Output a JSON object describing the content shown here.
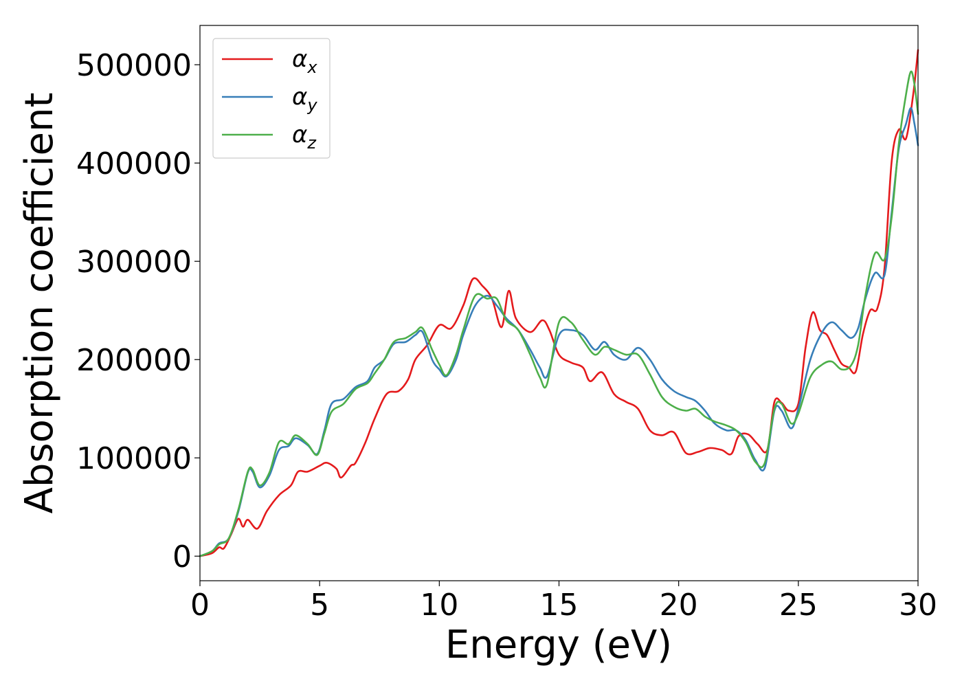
{
  "chart_data": {
    "type": "line",
    "title": "",
    "xlabel": "Energy (eV)",
    "ylabel": "Absorption coefficient",
    "xlim": [
      0,
      30
    ],
    "ylim": [
      -25000,
      540000
    ],
    "xticks": [
      0,
      5,
      10,
      15,
      20,
      25,
      30
    ],
    "yticks": [
      0,
      100000,
      200000,
      300000,
      400000,
      500000
    ],
    "grid": false,
    "legend_position": "top-left",
    "series": [
      {
        "name": "α",
        "subscript": "x",
        "color": "#e41a1c",
        "points": [
          [
            0,
            0
          ],
          [
            0.5,
            3000
          ],
          [
            0.8,
            9000
          ],
          [
            1.0,
            8000
          ],
          [
            1.3,
            22000
          ],
          [
            1.6,
            38000
          ],
          [
            1.8,
            30000
          ],
          [
            2.0,
            37000
          ],
          [
            2.4,
            28000
          ],
          [
            2.8,
            46000
          ],
          [
            3.3,
            62000
          ],
          [
            3.8,
            72000
          ],
          [
            4.1,
            86000
          ],
          [
            4.5,
            86000
          ],
          [
            5.0,
            92000
          ],
          [
            5.3,
            95000
          ],
          [
            5.7,
            89000
          ],
          [
            5.9,
            80000
          ],
          [
            6.3,
            92000
          ],
          [
            6.5,
            95000
          ],
          [
            6.9,
            115000
          ],
          [
            7.3,
            140000
          ],
          [
            7.8,
            165000
          ],
          [
            8.3,
            168000
          ],
          [
            8.7,
            180000
          ],
          [
            9.0,
            200000
          ],
          [
            9.5,
            215000
          ],
          [
            10.0,
            235000
          ],
          [
            10.5,
            232000
          ],
          [
            11.0,
            255000
          ],
          [
            11.4,
            282000
          ],
          [
            11.8,
            275000
          ],
          [
            12.2,
            262000
          ],
          [
            12.6,
            233000
          ],
          [
            12.9,
            270000
          ],
          [
            13.2,
            242000
          ],
          [
            13.8,
            228000
          ],
          [
            14.3,
            240000
          ],
          [
            14.6,
            230000
          ],
          [
            15.0,
            205000
          ],
          [
            15.5,
            197000
          ],
          [
            16.0,
            192000
          ],
          [
            16.3,
            178000
          ],
          [
            16.8,
            187000
          ],
          [
            17.3,
            165000
          ],
          [
            17.8,
            157000
          ],
          [
            18.3,
            150000
          ],
          [
            18.8,
            128000
          ],
          [
            19.3,
            123000
          ],
          [
            19.8,
            126000
          ],
          [
            20.3,
            105000
          ],
          [
            20.8,
            106000
          ],
          [
            21.3,
            110000
          ],
          [
            21.8,
            108000
          ],
          [
            22.2,
            104000
          ],
          [
            22.5,
            122000
          ],
          [
            22.9,
            124000
          ],
          [
            23.3,
            114000
          ],
          [
            23.7,
            108000
          ],
          [
            24.0,
            157000
          ],
          [
            24.3,
            156000
          ],
          [
            24.6,
            148000
          ],
          [
            25.0,
            155000
          ],
          [
            25.3,
            212000
          ],
          [
            25.6,
            248000
          ],
          [
            25.9,
            230000
          ],
          [
            26.2,
            225000
          ],
          [
            26.5,
            210000
          ],
          [
            26.8,
            196000
          ],
          [
            27.1,
            192000
          ],
          [
            27.4,
            188000
          ],
          [
            27.7,
            226000
          ],
          [
            28.0,
            250000
          ],
          [
            28.3,
            252000
          ],
          [
            28.6,
            293000
          ],
          [
            28.9,
            402000
          ],
          [
            29.2,
            434000
          ],
          [
            29.5,
            425000
          ],
          [
            29.8,
            470000
          ],
          [
            30.0,
            515000
          ]
        ]
      },
      {
        "name": "α",
        "subscript": "y",
        "color": "#377eb8",
        "points": [
          [
            0,
            0
          ],
          [
            0.5,
            5000
          ],
          [
            0.8,
            13000
          ],
          [
            1.2,
            18000
          ],
          [
            1.6,
            45000
          ],
          [
            2.0,
            85000
          ],
          [
            2.2,
            86000
          ],
          [
            2.5,
            70000
          ],
          [
            2.9,
            82000
          ],
          [
            3.3,
            108000
          ],
          [
            3.7,
            112000
          ],
          [
            4.0,
            120000
          ],
          [
            4.5,
            113000
          ],
          [
            4.9,
            104000
          ],
          [
            5.2,
            128000
          ],
          [
            5.5,
            155000
          ],
          [
            6.0,
            160000
          ],
          [
            6.5,
            172000
          ],
          [
            7.0,
            178000
          ],
          [
            7.3,
            192000
          ],
          [
            7.7,
            200000
          ],
          [
            8.1,
            216000
          ],
          [
            8.6,
            218000
          ],
          [
            9.0,
            225000
          ],
          [
            9.3,
            228000
          ],
          [
            9.7,
            200000
          ],
          [
            10.0,
            190000
          ],
          [
            10.3,
            183000
          ],
          [
            10.7,
            200000
          ],
          [
            11.0,
            225000
          ],
          [
            11.5,
            255000
          ],
          [
            12.0,
            265000
          ],
          [
            12.4,
            255000
          ],
          [
            12.8,
            242000
          ],
          [
            13.3,
            230000
          ],
          [
            13.8,
            210000
          ],
          [
            14.2,
            192000
          ],
          [
            14.5,
            183000
          ],
          [
            15.0,
            225000
          ],
          [
            15.5,
            230000
          ],
          [
            16.0,
            225000
          ],
          [
            16.5,
            210000
          ],
          [
            16.9,
            218000
          ],
          [
            17.3,
            205000
          ],
          [
            17.8,
            200000
          ],
          [
            18.3,
            212000
          ],
          [
            18.8,
            200000
          ],
          [
            19.3,
            180000
          ],
          [
            19.8,
            168000
          ],
          [
            20.3,
            162000
          ],
          [
            20.7,
            158000
          ],
          [
            21.1,
            148000
          ],
          [
            21.5,
            135000
          ],
          [
            22.0,
            128000
          ],
          [
            22.4,
            128000
          ],
          [
            22.8,
            118000
          ],
          [
            23.2,
            98000
          ],
          [
            23.6,
            90000
          ],
          [
            24.0,
            148000
          ],
          [
            24.3,
            148000
          ],
          [
            24.7,
            130000
          ],
          [
            25.0,
            150000
          ],
          [
            25.5,
            200000
          ],
          [
            26.0,
            228000
          ],
          [
            26.4,
            238000
          ],
          [
            26.8,
            230000
          ],
          [
            27.2,
            222000
          ],
          [
            27.5,
            232000
          ],
          [
            27.8,
            262000
          ],
          [
            28.2,
            288000
          ],
          [
            28.6,
            286000
          ],
          [
            28.9,
            350000
          ],
          [
            29.2,
            415000
          ],
          [
            29.5,
            440000
          ],
          [
            29.7,
            456000
          ],
          [
            29.85,
            440000
          ],
          [
            30.0,
            418000
          ]
        ]
      },
      {
        "name": "α",
        "subscript": "z",
        "color": "#4daf4a",
        "points": [
          [
            0,
            0
          ],
          [
            0.5,
            5000
          ],
          [
            0.8,
            12000
          ],
          [
            1.2,
            18000
          ],
          [
            1.6,
            47000
          ],
          [
            2.0,
            86000
          ],
          [
            2.2,
            88000
          ],
          [
            2.5,
            72000
          ],
          [
            2.9,
            85000
          ],
          [
            3.3,
            116000
          ],
          [
            3.7,
            114000
          ],
          [
            4.0,
            123000
          ],
          [
            4.5,
            114000
          ],
          [
            4.9,
            103000
          ],
          [
            5.2,
            125000
          ],
          [
            5.5,
            147000
          ],
          [
            6.0,
            155000
          ],
          [
            6.5,
            170000
          ],
          [
            7.0,
            176000
          ],
          [
            7.3,
            186000
          ],
          [
            7.7,
            200000
          ],
          [
            8.1,
            218000
          ],
          [
            8.6,
            222000
          ],
          [
            9.0,
            228000
          ],
          [
            9.3,
            232000
          ],
          [
            9.7,
            210000
          ],
          [
            10.0,
            195000
          ],
          [
            10.3,
            184000
          ],
          [
            10.7,
            205000
          ],
          [
            11.0,
            230000
          ],
          [
            11.5,
            265000
          ],
          [
            12.0,
            262000
          ],
          [
            12.4,
            262000
          ],
          [
            12.8,
            240000
          ],
          [
            13.3,
            230000
          ],
          [
            13.8,
            205000
          ],
          [
            14.2,
            182000
          ],
          [
            14.5,
            175000
          ],
          [
            15.0,
            238000
          ],
          [
            15.5,
            238000
          ],
          [
            16.0,
            220000
          ],
          [
            16.5,
            205000
          ],
          [
            16.9,
            213000
          ],
          [
            17.3,
            210000
          ],
          [
            17.8,
            205000
          ],
          [
            18.3,
            205000
          ],
          [
            18.8,
            185000
          ],
          [
            19.3,
            162000
          ],
          [
            19.8,
            152000
          ],
          [
            20.3,
            148000
          ],
          [
            20.7,
            150000
          ],
          [
            21.1,
            142000
          ],
          [
            21.5,
            137000
          ],
          [
            22.0,
            133000
          ],
          [
            22.4,
            128000
          ],
          [
            22.8,
            116000
          ],
          [
            23.2,
            96000
          ],
          [
            23.6,
            95000
          ],
          [
            24.0,
            150000
          ],
          [
            24.3,
            155000
          ],
          [
            24.7,
            135000
          ],
          [
            25.0,
            145000
          ],
          [
            25.5,
            182000
          ],
          [
            26.0,
            195000
          ],
          [
            26.4,
            198000
          ],
          [
            26.8,
            190000
          ],
          [
            27.2,
            194000
          ],
          [
            27.5,
            215000
          ],
          [
            27.8,
            265000
          ],
          [
            28.2,
            308000
          ],
          [
            28.6,
            302000
          ],
          [
            28.9,
            345000
          ],
          [
            29.2,
            420000
          ],
          [
            29.5,
            470000
          ],
          [
            29.7,
            493000
          ],
          [
            29.85,
            480000
          ],
          [
            30.0,
            450000
          ]
        ]
      }
    ]
  }
}
